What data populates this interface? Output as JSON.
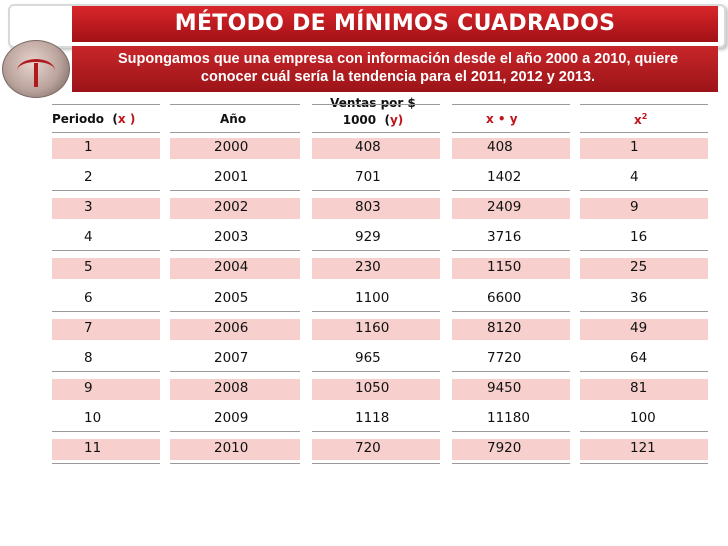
{
  "title": "MÉTODO DE MÍNIMOS CUADRADOS",
  "intro": {
    "line1": "Supongamos que una empresa con información desde el año 2000 a 2010, quiere",
    "line2": "conocer cuál sería la tendencia para el 2011, 2012 y 2013."
  },
  "table": {
    "headers": {
      "periodo": "Periodo",
      "periodo_open": "(",
      "periodo_var": "x",
      "periodo_close": " )",
      "anio": "Año",
      "ventas_line1": "Ventas por $",
      "ventas_line2": "1000",
      "ventas_open": "(",
      "ventas_var": "y",
      "ventas_close": ")",
      "xy": "x • y",
      "x2_base": "x",
      "x2_exp": "2"
    },
    "rows": [
      {
        "x": "1",
        "year": "2000",
        "y": "408",
        "xy": "408",
        "x2": "1"
      },
      {
        "x": "2",
        "year": "2001",
        "y": "701",
        "xy": "1402",
        "x2": "4"
      },
      {
        "x": "3",
        "year": "2002",
        "y": "803",
        "xy": "2409",
        "x2": "9"
      },
      {
        "x": "4",
        "year": "2003",
        "y": "929",
        "xy": "3716",
        "x2": "16"
      },
      {
        "x": "5",
        "year": "2004",
        "y": "230",
        "xy": "1150",
        "x2": "25"
      },
      {
        "x": "6",
        "year": "2005",
        "y": "1100",
        "xy": "6600",
        "x2": "36"
      },
      {
        "x": "7",
        "year": "2006",
        "y": "1160",
        "xy": "8120",
        "x2": "49"
      },
      {
        "x": "8",
        "year": "2007",
        "y": "965",
        "xy": "7720",
        "x2": "64"
      },
      {
        "x": "9",
        "year": "2008",
        "y": "1050",
        "xy": "9450",
        "x2": "81"
      },
      {
        "x": "10",
        "year": "2009",
        "y": "1118",
        "xy": "11180",
        "x2": "100"
      },
      {
        "x": "11",
        "year": "2010",
        "y": "720",
        "xy": "7920",
        "x2": "121"
      }
    ]
  },
  "colors": {
    "accent_red": "#c0141b",
    "band_pink": "#f7d0cd"
  }
}
